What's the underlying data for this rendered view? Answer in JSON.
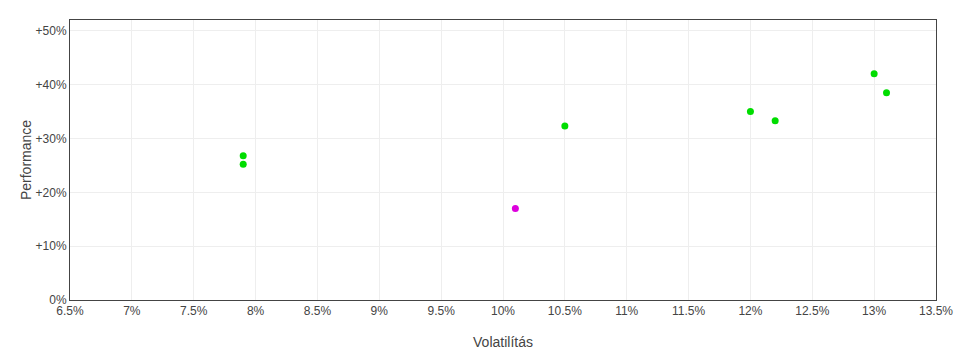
{
  "chart_data": {
    "type": "scatter",
    "xlabel": "Volatilítás",
    "ylabel": "Performance",
    "xlim": [
      0.065,
      0.135
    ],
    "ylim": [
      0.0,
      0.52
    ],
    "xticks": [
      {
        "value": 0.065,
        "label": "6.5%"
      },
      {
        "value": 0.07,
        "label": "7%"
      },
      {
        "value": 0.075,
        "label": "7.5%"
      },
      {
        "value": 0.08,
        "label": "8%"
      },
      {
        "value": 0.085,
        "label": "8.5%"
      },
      {
        "value": 0.09,
        "label": "9%"
      },
      {
        "value": 0.095,
        "label": "9.5%"
      },
      {
        "value": 0.1,
        "label": "10%"
      },
      {
        "value": 0.105,
        "label": "10.5%"
      },
      {
        "value": 0.11,
        "label": "11%"
      },
      {
        "value": 0.115,
        "label": "11.5%"
      },
      {
        "value": 0.12,
        "label": "12%"
      },
      {
        "value": 0.125,
        "label": "12.5%"
      },
      {
        "value": 0.13,
        "label": "13%"
      },
      {
        "value": 0.135,
        "label": "13.5%"
      }
    ],
    "yticks": [
      {
        "value": 0.0,
        "label": "0%"
      },
      {
        "value": 0.1,
        "label": "+10%"
      },
      {
        "value": 0.2,
        "label": "+20%"
      },
      {
        "value": 0.3,
        "label": "+30%"
      },
      {
        "value": 0.4,
        "label": "+40%"
      },
      {
        "value": 0.5,
        "label": "+50%"
      }
    ],
    "grid": true,
    "series": [
      {
        "color": "#00dd00",
        "marker": "circle",
        "x": [
          0.079,
          0.079,
          0.105,
          0.12,
          0.122,
          0.13,
          0.131
        ],
        "values": [
          0.268,
          0.252,
          0.323,
          0.35,
          0.333,
          0.42,
          0.385
        ]
      },
      {
        "color": "#dd00dd",
        "marker": "circle",
        "x": [
          0.101
        ],
        "values": [
          0.17
        ]
      }
    ]
  }
}
